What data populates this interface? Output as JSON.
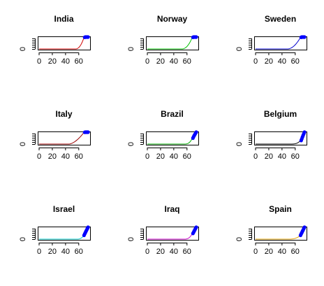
{
  "chart_data": {
    "type": "line",
    "layout": "3x3 small multiples",
    "x_ticks": [
      0,
      20,
      40,
      60
    ],
    "y_tick_label": "0",
    "xlim": [
      0,
      75
    ],
    "ylim": [
      0,
      1
    ],
    "highlight_color": "#0000ff",
    "panels": [
      {
        "title": "India",
        "color": "#d00000",
        "knee": 55,
        "power": 2.2,
        "hl_x": [
          69,
          70,
          71,
          72,
          73,
          74
        ],
        "hl_y": [
          0.98,
          1,
          1,
          1,
          1,
          1
        ]
      },
      {
        "title": "Norway",
        "color": "#00c000",
        "knee": 52,
        "power": 2.2,
        "hl_x": [
          69,
          70,
          71,
          72,
          73,
          74
        ],
        "hl_y": [
          0.98,
          1,
          1,
          1,
          1,
          1
        ]
      },
      {
        "title": "Sweden",
        "color": "#0000cc",
        "knee": 48,
        "power": 2.0,
        "hl_x": [
          69,
          70,
          71,
          72,
          73,
          74
        ],
        "hl_y": [
          0.98,
          1,
          1,
          1,
          1,
          1
        ]
      },
      {
        "title": "Italy",
        "color": "#990000",
        "knee": 45,
        "power": 1.7,
        "hl_x": [
          69,
          70,
          71,
          72,
          73,
          74
        ],
        "hl_y": [
          0.99,
          1,
          1,
          1,
          1,
          1
        ]
      },
      {
        "title": "Brazil",
        "color": "#00aa00",
        "knee": 55,
        "power": 3.2,
        "hl_x": [
          69,
          70,
          71,
          72,
          73,
          74
        ],
        "hl_y": [
          0.5,
          0.62,
          0.72,
          0.82,
          0.91,
          1
        ]
      },
      {
        "title": "Belgium",
        "color": "#000000",
        "knee": 52,
        "power": 3.4,
        "hl_x": [
          69,
          70,
          71,
          72,
          73,
          74
        ],
        "hl_y": [
          0.3,
          0.45,
          0.6,
          0.74,
          0.87,
          1
        ]
      },
      {
        "title": "Israel",
        "color": "#00cccc",
        "knee": 58,
        "power": 2.2,
        "hl_x": [
          68,
          69,
          70,
          71,
          72,
          73,
          74
        ],
        "hl_y": [
          0.32,
          0.44,
          0.55,
          0.67,
          0.78,
          0.89,
          1
        ]
      },
      {
        "title": "Iraq",
        "color": "#cc00cc",
        "knee": 55,
        "power": 3.0,
        "hl_x": [
          69,
          70,
          71,
          72,
          73,
          74
        ],
        "hl_y": [
          0.48,
          0.58,
          0.69,
          0.8,
          0.9,
          1
        ]
      },
      {
        "title": "Spain",
        "color": "#e0a000",
        "knee": 50,
        "power": 2.6,
        "hl_x": [
          68,
          69,
          70,
          71,
          72,
          73,
          74
        ],
        "hl_y": [
          0.32,
          0.44,
          0.55,
          0.67,
          0.78,
          0.89,
          1
        ]
      }
    ]
  }
}
